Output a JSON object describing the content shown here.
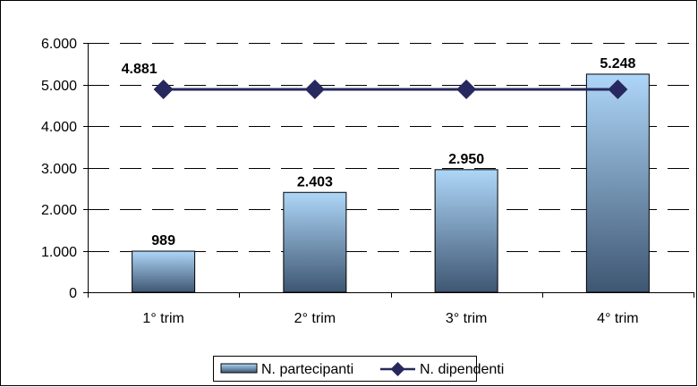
{
  "chart_data": {
    "type": "bar",
    "categories": [
      "1° trim",
      "2° trim",
      "3° trim",
      "4° trim"
    ],
    "series": [
      {
        "name": "N. partecipanti",
        "type": "bar",
        "values": [
          989,
          2403,
          2950,
          5248
        ],
        "labels": [
          "989",
          "2.403",
          "2.950",
          "5.248"
        ]
      },
      {
        "name": "N. dipendenti",
        "type": "line",
        "values": [
          4881,
          4881,
          4881,
          4881
        ],
        "labels": [
          "4.881"
        ]
      }
    ],
    "ylim": [
      0,
      6000
    ],
    "yticks": [
      0,
      1000,
      2000,
      3000,
      4000,
      5000,
      6000
    ],
    "ytick_labels": [
      "0",
      "1.000",
      "2.000",
      "3.000",
      "4.000",
      "5.000",
      "6.000"
    ],
    "grid": "horizontal dashed",
    "legend_position": "bottom",
    "title": "",
    "xlabel": "",
    "ylabel": "",
    "colors": {
      "bar_top": "#aed6f8",
      "bar_bottom": "#3e5672",
      "line": "#26285e",
      "marker": "#26285e"
    }
  }
}
